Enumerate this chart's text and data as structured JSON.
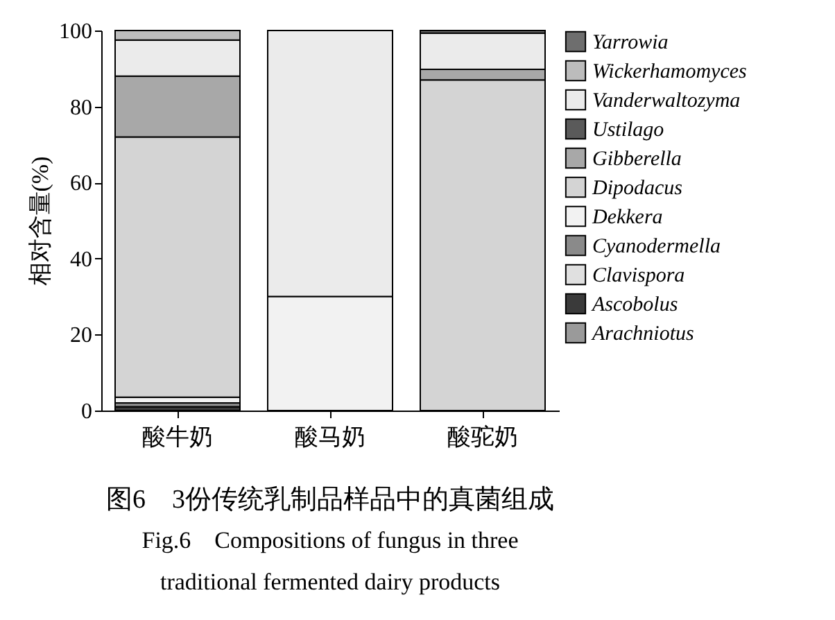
{
  "chart_data": {
    "type": "bar",
    "stacked": true,
    "title": "图6　3份传统乳制品样品中的真菌组成",
    "subtitle": "Fig.6　Compositions of fungus in three\ntraditional fermented dairy products",
    "ylabel": "相对含量(%)",
    "categories": [
      "酸牛奶",
      "酸马奶",
      "酸驼奶"
    ],
    "ylim": [
      0,
      100
    ],
    "yticks": [
      0,
      20,
      40,
      60,
      80,
      100
    ],
    "grid": false,
    "legend": "right",
    "series": [
      {
        "name": "Arachniotus",
        "color": "#9a9a9a",
        "values": [
          null,
          null,
          null
        ]
      },
      {
        "name": "Ascobolus",
        "color": "#3a3a3a",
        "values": [
          1,
          null,
          null
        ]
      },
      {
        "name": "Clavispora",
        "color": "#e0e0e0",
        "values": [
          null,
          null,
          null
        ]
      },
      {
        "name": "Cyanodermella",
        "color": "#8a8a8a",
        "values": [
          1,
          null,
          null
        ]
      },
      {
        "name": "Dekkera",
        "color": "#f2f2f2",
        "values": [
          1.5,
          30,
          null
        ]
      },
      {
        "name": "Dipodacus",
        "color": "#d4d4d4",
        "values": [
          68.5,
          null,
          87
        ]
      },
      {
        "name": "Gibberella",
        "color": "#a8a8a8",
        "values": [
          16,
          null,
          2.8
        ]
      },
      {
        "name": "Ustilago",
        "color": "#5a5a5a",
        "values": [
          null,
          null,
          null
        ]
      },
      {
        "name": "Vanderwaltozyma",
        "color": "#ebebeb",
        "values": [
          9.5,
          70,
          9.5
        ]
      },
      {
        "name": "Wickerhamomyces",
        "color": "#bcbcbc",
        "values": [
          2.5,
          null,
          null
        ]
      },
      {
        "name": "Yarrowia",
        "color": "#6e6e6e",
        "values": [
          null,
          null,
          0.7
        ]
      }
    ]
  }
}
